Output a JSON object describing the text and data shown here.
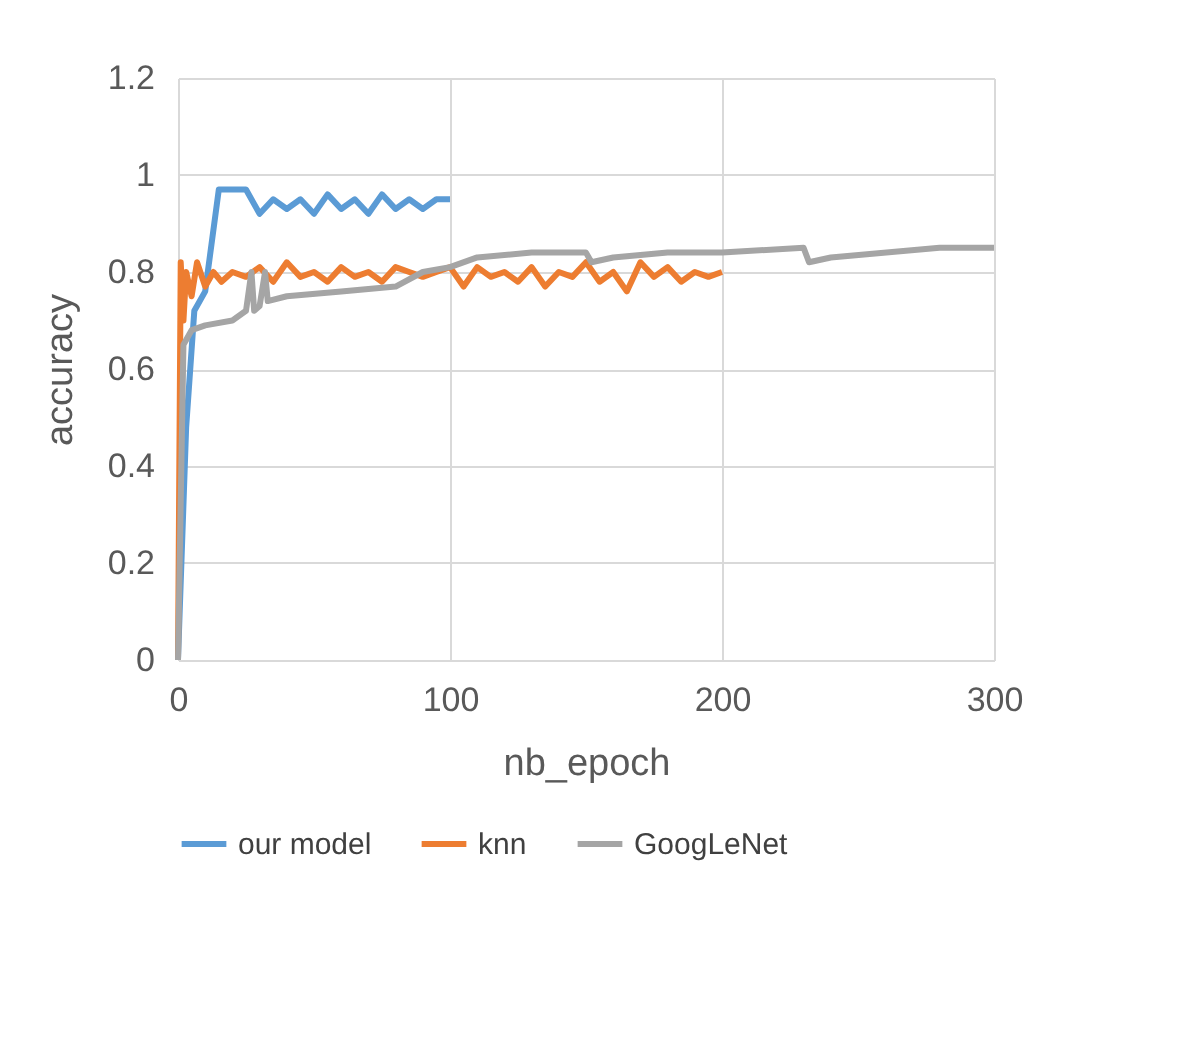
{
  "chart_data": {
    "type": "line",
    "xlabel": "nb_epoch",
    "ylabel": "accuracy",
    "xlim": [
      0,
      300
    ],
    "xticks": [
      0,
      100,
      200,
      300
    ],
    "ylim": [
      0,
      1.2
    ],
    "yticks": [
      0,
      0.2,
      0.4,
      0.6,
      0.8,
      1,
      1.2
    ],
    "grid": true,
    "legend": "bottom",
    "marker": "none",
    "line_style": "solid",
    "series": [
      {
        "name": "our model",
        "color": "#5b9bd5",
        "x": [
          0,
          3,
          6,
          10,
          15,
          25,
          30,
          35,
          40,
          45,
          50,
          55,
          60,
          65,
          70,
          75,
          80,
          85,
          90,
          95,
          100
        ],
        "values": [
          0,
          0.48,
          0.72,
          0.76,
          0.97,
          0.97,
          0.92,
          0.95,
          0.93,
          0.95,
          0.92,
          0.96,
          0.93,
          0.95,
          0.92,
          0.96,
          0.93,
          0.95,
          0.93,
          0.95,
          0.95
        ]
      },
      {
        "name": "knn",
        "color": "#ed7d31",
        "x": [
          0,
          1,
          2,
          3,
          5,
          7,
          10,
          13,
          16,
          20,
          25,
          30,
          35,
          40,
          45,
          50,
          55,
          60,
          65,
          70,
          75,
          80,
          85,
          90,
          95,
          100,
          105,
          110,
          115,
          120,
          125,
          130,
          135,
          140,
          145,
          150,
          155,
          160,
          165,
          170,
          175,
          180,
          185,
          190,
          195,
          200
        ],
        "values": [
          0,
          0.82,
          0.7,
          0.8,
          0.75,
          0.82,
          0.77,
          0.8,
          0.78,
          0.8,
          0.79,
          0.81,
          0.78,
          0.82,
          0.79,
          0.8,
          0.78,
          0.81,
          0.79,
          0.8,
          0.78,
          0.81,
          0.8,
          0.79,
          0.8,
          0.81,
          0.77,
          0.81,
          0.79,
          0.8,
          0.78,
          0.81,
          0.77,
          0.8,
          0.79,
          0.82,
          0.78,
          0.8,
          0.76,
          0.82,
          0.79,
          0.81,
          0.78,
          0.8,
          0.79,
          0.8
        ]
      },
      {
        "name": "GoogLeNet",
        "color": "#a5a5a5",
        "x": [
          0,
          2,
          5,
          10,
          20,
          25,
          27,
          28,
          30,
          32,
          33,
          40,
          60,
          80,
          90,
          100,
          110,
          130,
          150,
          152,
          160,
          180,
          200,
          230,
          232,
          240,
          280,
          300
        ],
        "values": [
          0,
          0.65,
          0.68,
          0.69,
          0.7,
          0.72,
          0.8,
          0.72,
          0.73,
          0.8,
          0.74,
          0.75,
          0.76,
          0.77,
          0.8,
          0.81,
          0.83,
          0.84,
          0.84,
          0.82,
          0.83,
          0.84,
          0.84,
          0.85,
          0.82,
          0.83,
          0.85,
          0.85
        ]
      }
    ]
  }
}
